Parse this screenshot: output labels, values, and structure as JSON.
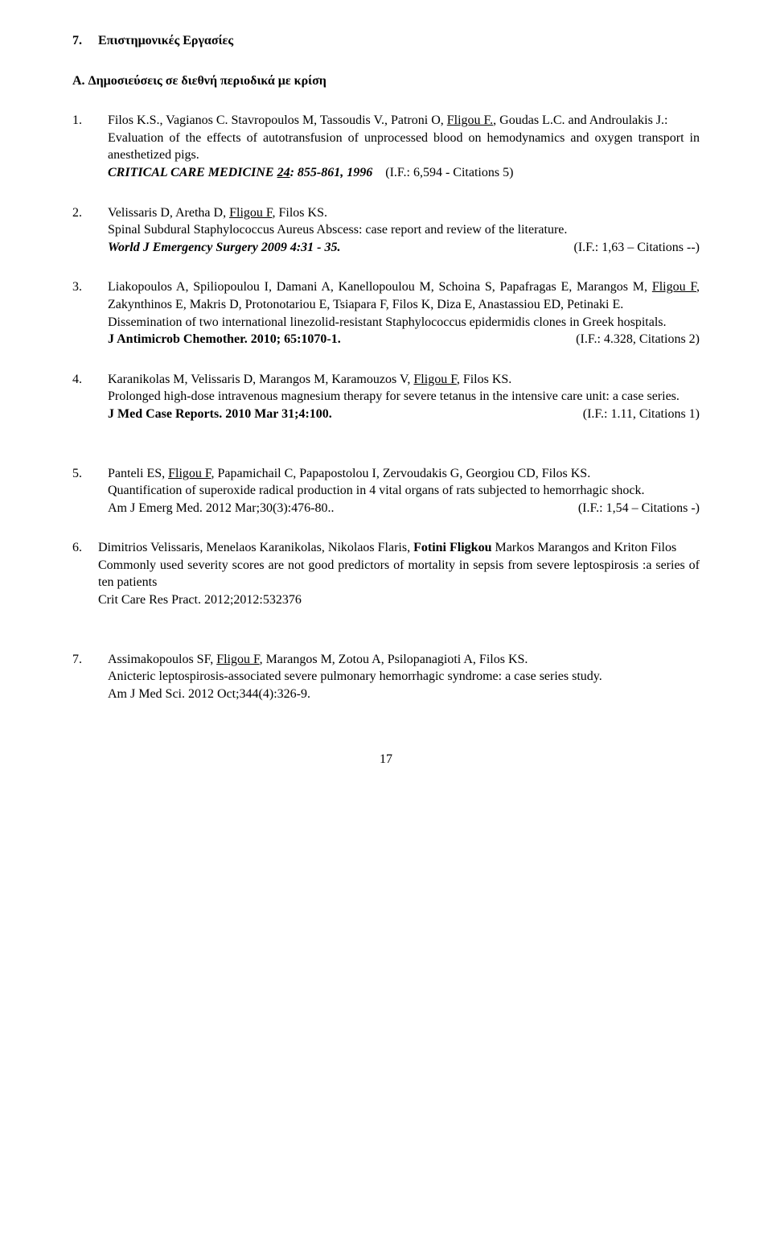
{
  "section": {
    "num": "7.",
    "title": "Επιστημονικές Εργασίες"
  },
  "subsection": {
    "label": "A.",
    "title": "Δημοσιεύσεις σε διεθνή περιοδικά με κρίση"
  },
  "entries": [
    {
      "num": "1.",
      "auth_pre": "Filos K.S., Vagianos C. Stavropoulos M, Tassoudis V., Patroni O, ",
      "auth_ul": "Fligou F.",
      "auth_post": ", Goudas L.C. and Androulakis J.:",
      "title_plain": "Evaluation of the effects of autotransfusion of unprocessed blood on hemodynamics and oxygen transport in anesthetized pigs.",
      "journal_left_b": "CRITICAL CARE MEDICINE ",
      "journal_vol_ul": "24",
      "journal_right_b": ": 855-861, 1996",
      "metric": "(I.F.: 6,594 - Citations 5)"
    },
    {
      "num": "2.",
      "auth_pre": "Velissaris D, Aretha D, ",
      "auth_ul": "Fligou F",
      "auth_post": ", Filos KS.",
      "title_plain": "Spinal Subdural Staphylococcus Aureus Abscess: case report and review of the literature.",
      "journal_left_b": "World J Emergency Surgery 2009 4:31 - 35.",
      "metric": "(I.F.: 1,63 – Citations --)"
    },
    {
      "num": "3.",
      "auth_pre": "Liakopoulos A, Spiliopoulou I, Damani A, Kanellopoulou M, Schoina S, Papafragas E, Marangos M, ",
      "auth_ul": "Fligou F",
      "auth_post": ", Zakynthinos E, Makris D, Protonotariou E, Tsiapara F, Filos K, Diza E, Anastassiou ED, Petinaki E.",
      "title_plain": "Dissemination of two international linezolid-resistant Staphylococcus epidermidis clones in Greek hospitals.",
      "journal_left_b": "J Antimicrob Chemother. 2010; 65:1070-1.",
      "metric": "(I.F.: 4.328,  Citations 2)"
    },
    {
      "num": "4.",
      "auth_pre": "Karanikolas M, Velissaris D, Marangos M, Karamouzos V, ",
      "auth_ul": "Fligou F",
      "auth_post": ", Filos KS.",
      "title_plain": "Prolonged high-dose intravenous magnesium therapy for severe tetanus in the intensive care unit: a case series.",
      "journal_left_b": "J Med Case Reports. 2010 Mar 31;4:100.",
      "metric": "(I.F.: 1.11,  Citations 1)"
    },
    {
      "num": "5.",
      "auth_pre": "Panteli ES, ",
      "auth_ul": "Fligou F",
      "auth_post": ", Papamichail C, Papapostolou I, Zervoudakis G, Georgiou CD, Filos KS.",
      "title_plain": "Quantification of superoxide radical production in 4 vital organs of rats subjected to hemorrhagic shock.",
      "journal_left": " Am J Emerg Med. 2012 Mar;30(3):476-80..",
      "metric": "(I.F.: 1,54 – Citations -)"
    },
    {
      "num": "6.",
      "auth_pre": "Dimitrios Velissaris, Menelaos Karanikolas, Nikolaos Flaris, ",
      "auth_bold": "Fotini Fligkou",
      "auth_post": "  Markos Marangos and Kriton Filos",
      "title_plain": "Commonly used severity scores are not good predictors of mortality in sepsis from severe leptospirosis :a  series of ten patients",
      "journal_left": "Crit Care Res Pract. 2012;2012:532376"
    },
    {
      "num": "7.",
      "auth_pre": "Assimakopoulos SF, ",
      "auth_ul": "Fligou F",
      "auth_post": ", Marangos M, Zotou A, Psilopanagioti A, Filos KS.",
      "title_plain": "Anicteric leptospirosis-associated severe pulmonary hemorrhagic syndrome: a case series study.",
      "journal_left": "Am J Med Sci. 2012 Oct;344(4):326-9."
    }
  ],
  "pageNumber": "17"
}
